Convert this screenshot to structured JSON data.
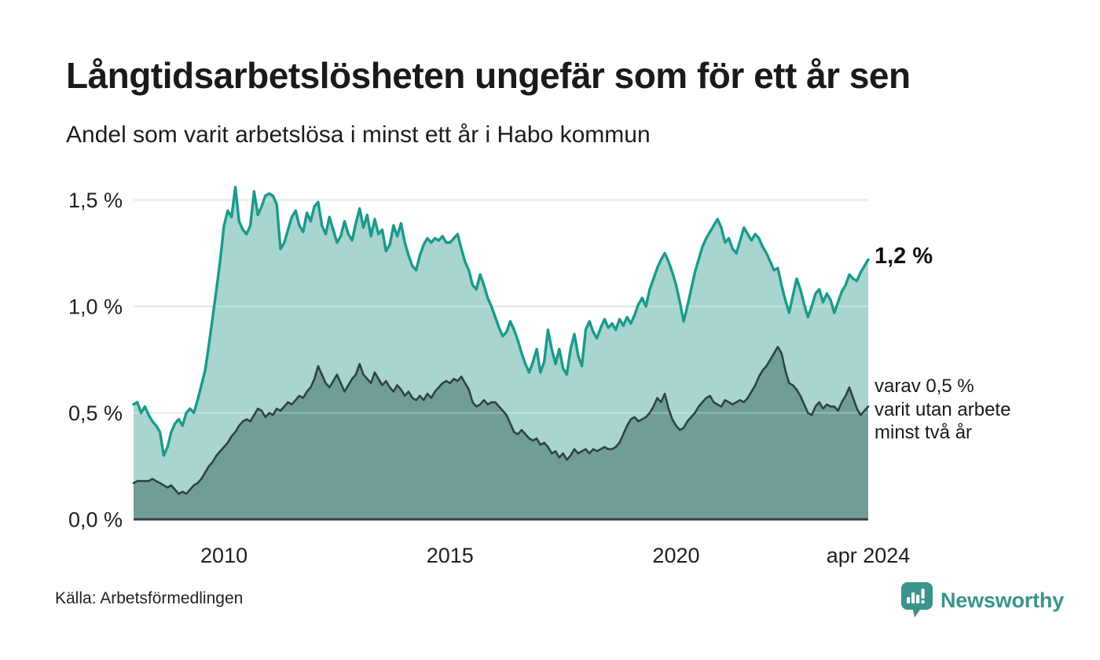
{
  "header": {
    "title": "Långtidsarbetslösheten ungefär som för ett år sen",
    "subtitle": "Andel som varit arbetslösa i minst ett år i Habo kommun"
  },
  "footer": {
    "source": "Källa: Arbetsförmedlingen",
    "brand": "Newsworthy",
    "brand_icon": "newsworthy-bubble-chart-icon"
  },
  "colors": {
    "line_teal": "#1a9a8c",
    "area_light": "#a8d5cf",
    "area_dark": "#6f9e97",
    "line_dark": "#2e4347",
    "gridline": "#d9dee1",
    "gridline_overlay": "rgba(255,255,255,0.30)",
    "baseline": "#3a3f41",
    "brand_teal": "#3a948b",
    "text": "#1a1a1a"
  },
  "chart_data": {
    "type": "area",
    "title": "Långtidsarbetslösheten ungefär som för ett år sen",
    "subtitle": "Andel som varit arbetslösa i minst ett år i Habo kommun",
    "x_unit": "month",
    "x_start": "2008-01",
    "x_end": "2024-04",
    "x_tick_labels": [
      "2010",
      "2015",
      "2020",
      "apr 2024"
    ],
    "x_tick_month_indices": [
      24,
      84,
      144,
      195
    ],
    "y_tick_labels": [
      "0,0 %",
      "0,5 %",
      "1,0 %",
      "1,5 %"
    ],
    "y_tick_values": [
      0,
      0.5,
      1.0,
      1.5
    ],
    "ylim": [
      0,
      1.6
    ],
    "grid": "horizontal",
    "legend_position": "none",
    "annotations": {
      "latest_value_label": "1,2 %",
      "secondary_label_lines": [
        "varav 0,5 %",
        "varit utan arbete",
        "minst två år"
      ]
    },
    "latest": {
      "at_least_one_year_pct": 1.2,
      "at_least_two_years_pct": 0.5
    },
    "series": [
      {
        "name": "Andel arbetslösa minst ett år",
        "values": [
          0.54,
          0.55,
          0.5,
          0.53,
          0.49,
          0.46,
          0.44,
          0.41,
          0.3,
          0.34,
          0.41,
          0.45,
          0.47,
          0.44,
          0.5,
          0.52,
          0.5,
          0.56,
          0.63,
          0.7,
          0.82,
          0.95,
          1.08,
          1.22,
          1.38,
          1.45,
          1.42,
          1.56,
          1.4,
          1.36,
          1.34,
          1.38,
          1.54,
          1.43,
          1.47,
          1.52,
          1.53,
          1.52,
          1.48,
          1.27,
          1.3,
          1.36,
          1.42,
          1.45,
          1.38,
          1.35,
          1.44,
          1.4,
          1.47,
          1.49,
          1.38,
          1.34,
          1.42,
          1.36,
          1.3,
          1.33,
          1.4,
          1.34,
          1.31,
          1.39,
          1.46,
          1.37,
          1.43,
          1.33,
          1.41,
          1.34,
          1.36,
          1.26,
          1.29,
          1.38,
          1.33,
          1.39,
          1.3,
          1.24,
          1.19,
          1.17,
          1.24,
          1.29,
          1.32,
          1.3,
          1.32,
          1.31,
          1.33,
          1.3,
          1.3,
          1.32,
          1.34,
          1.27,
          1.21,
          1.17,
          1.1,
          1.08,
          1.15,
          1.1,
          1.04,
          1.0,
          0.95,
          0.9,
          0.86,
          0.88,
          0.93,
          0.89,
          0.84,
          0.78,
          0.73,
          0.69,
          0.74,
          0.8,
          0.69,
          0.74,
          0.89,
          0.8,
          0.73,
          0.8,
          0.71,
          0.68,
          0.8,
          0.87,
          0.77,
          0.72,
          0.89,
          0.93,
          0.88,
          0.85,
          0.9,
          0.94,
          0.9,
          0.92,
          0.89,
          0.94,
          0.91,
          0.95,
          0.92,
          0.96,
          1.01,
          1.04,
          1.0,
          1.08,
          1.13,
          1.18,
          1.22,
          1.25,
          1.21,
          1.16,
          1.1,
          1.02,
          0.93,
          1.0,
          1.08,
          1.16,
          1.22,
          1.28,
          1.32,
          1.35,
          1.38,
          1.41,
          1.37,
          1.3,
          1.32,
          1.27,
          1.25,
          1.31,
          1.37,
          1.34,
          1.31,
          1.34,
          1.32,
          1.28,
          1.25,
          1.21,
          1.17,
          1.18,
          1.1,
          1.03,
          0.97,
          1.05,
          1.13,
          1.08,
          1.01,
          0.95,
          1.0,
          1.06,
          1.08,
          1.02,
          1.06,
          1.03,
          0.97,
          1.02,
          1.07,
          1.1,
          1.15,
          1.13,
          1.12,
          1.16,
          1.19,
          1.22
        ]
      },
      {
        "name": "varav utan arbete minst två år",
        "values": [
          0.17,
          0.18,
          0.18,
          0.18,
          0.18,
          0.19,
          0.18,
          0.17,
          0.16,
          0.15,
          0.16,
          0.14,
          0.12,
          0.13,
          0.12,
          0.14,
          0.16,
          0.17,
          0.19,
          0.22,
          0.25,
          0.27,
          0.3,
          0.32,
          0.34,
          0.36,
          0.39,
          0.41,
          0.44,
          0.46,
          0.47,
          0.46,
          0.49,
          0.52,
          0.51,
          0.48,
          0.5,
          0.49,
          0.52,
          0.51,
          0.53,
          0.55,
          0.54,
          0.56,
          0.58,
          0.57,
          0.6,
          0.62,
          0.66,
          0.72,
          0.68,
          0.64,
          0.62,
          0.65,
          0.68,
          0.64,
          0.6,
          0.63,
          0.66,
          0.68,
          0.73,
          0.68,
          0.66,
          0.64,
          0.69,
          0.66,
          0.63,
          0.65,
          0.62,
          0.6,
          0.63,
          0.61,
          0.58,
          0.6,
          0.57,
          0.56,
          0.58,
          0.56,
          0.59,
          0.57,
          0.6,
          0.62,
          0.64,
          0.65,
          0.64,
          0.66,
          0.65,
          0.67,
          0.64,
          0.61,
          0.55,
          0.53,
          0.54,
          0.56,
          0.54,
          0.55,
          0.55,
          0.53,
          0.51,
          0.49,
          0.45,
          0.41,
          0.4,
          0.42,
          0.4,
          0.38,
          0.37,
          0.38,
          0.35,
          0.36,
          0.34,
          0.31,
          0.32,
          0.29,
          0.31,
          0.28,
          0.3,
          0.33,
          0.31,
          0.32,
          0.33,
          0.31,
          0.33,
          0.32,
          0.33,
          0.34,
          0.33,
          0.33,
          0.34,
          0.36,
          0.4,
          0.44,
          0.47,
          0.48,
          0.46,
          0.47,
          0.48,
          0.5,
          0.53,
          0.57,
          0.55,
          0.59,
          0.52,
          0.47,
          0.44,
          0.42,
          0.43,
          0.46,
          0.48,
          0.5,
          0.53,
          0.55,
          0.57,
          0.58,
          0.55,
          0.54,
          0.53,
          0.56,
          0.55,
          0.54,
          0.55,
          0.56,
          0.55,
          0.57,
          0.6,
          0.63,
          0.67,
          0.7,
          0.72,
          0.75,
          0.78,
          0.81,
          0.78,
          0.7,
          0.64,
          0.63,
          0.61,
          0.58,
          0.54,
          0.5,
          0.49,
          0.53,
          0.55,
          0.52,
          0.54,
          0.53,
          0.53,
          0.51,
          0.55,
          0.58,
          0.62,
          0.57,
          0.52,
          0.49,
          0.51,
          0.53
        ]
      }
    ]
  }
}
